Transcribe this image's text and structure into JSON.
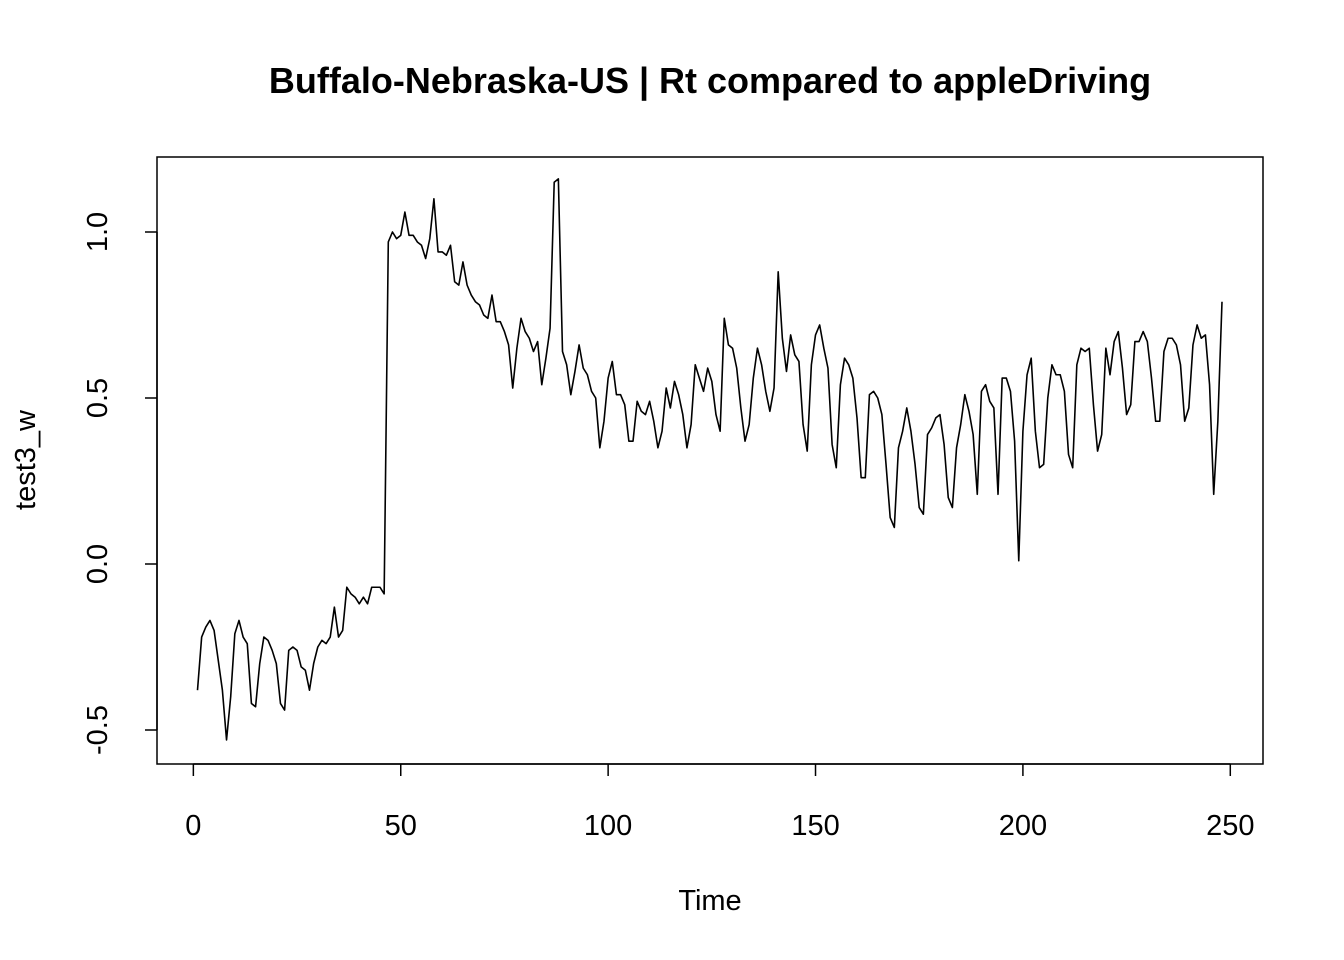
{
  "chart_data": {
    "type": "line",
    "title": "Buffalo-Nebraska-US | Rt compared to appleDriving",
    "xlabel": "Time",
    "ylabel": "test3_w",
    "xlim": [
      1,
      248
    ],
    "ylim": [
      -0.59,
      1.24
    ],
    "x_ticks": [
      0,
      50,
      100,
      150,
      200,
      250
    ],
    "x_tick_labels": [
      "0",
      "50",
      "100",
      "150",
      "200",
      "250"
    ],
    "y_ticks": [
      -0.5,
      0.0,
      0.5,
      1.0
    ],
    "y_tick_labels": [
      "-0.5",
      "0.0",
      "0.5",
      "1.0"
    ],
    "grid": false,
    "legend": "none",
    "series": [
      {
        "x_start": 1,
        "x_step": 1,
        "values": [
          -0.38,
          -0.22,
          -0.19,
          -0.17,
          -0.2,
          -0.29,
          -0.38,
          -0.53,
          -0.4,
          -0.21,
          -0.17,
          -0.22,
          -0.24,
          -0.42,
          -0.43,
          -0.3,
          -0.22,
          -0.23,
          -0.26,
          -0.3,
          -0.42,
          -0.44,
          -0.26,
          -0.25,
          -0.26,
          -0.31,
          -0.32,
          -0.38,
          -0.3,
          -0.25,
          -0.23,
          -0.24,
          -0.22,
          -0.13,
          -0.22,
          -0.2,
          -0.07,
          -0.09,
          -0.1,
          -0.12,
          -0.1,
          -0.12,
          -0.07,
          -0.07,
          -0.07,
          -0.09,
          0.97,
          1.0,
          0.98,
          0.99,
          1.06,
          0.99,
          0.99,
          0.97,
          0.96,
          0.92,
          0.98,
          1.1,
          0.94,
          0.94,
          0.93,
          0.96,
          0.85,
          0.84,
          0.91,
          0.84,
          0.81,
          0.79,
          0.78,
          0.75,
          0.74,
          0.81,
          0.73,
          0.73,
          0.7,
          0.66,
          0.53,
          0.65,
          0.74,
          0.7,
          0.68,
          0.64,
          0.67,
          0.54,
          0.62,
          0.71,
          1.15,
          1.16,
          0.64,
          0.6,
          0.51,
          0.58,
          0.66,
          0.59,
          0.57,
          0.52,
          0.5,
          0.35,
          0.43,
          0.56,
          0.61,
          0.51,
          0.51,
          0.48,
          0.37,
          0.37,
          0.49,
          0.46,
          0.45,
          0.49,
          0.43,
          0.35,
          0.4,
          0.53,
          0.47,
          0.55,
          0.51,
          0.45,
          0.35,
          0.42,
          0.6,
          0.56,
          0.52,
          0.59,
          0.55,
          0.45,
          0.4,
          0.74,
          0.66,
          0.65,
          0.59,
          0.47,
          0.37,
          0.42,
          0.56,
          0.65,
          0.6,
          0.52,
          0.46,
          0.53,
          0.88,
          0.68,
          0.58,
          0.69,
          0.63,
          0.61,
          0.42,
          0.34,
          0.6,
          0.69,
          0.72,
          0.65,
          0.59,
          0.36,
          0.29,
          0.54,
          0.62,
          0.6,
          0.56,
          0.44,
          0.26,
          0.26,
          0.51,
          0.52,
          0.5,
          0.45,
          0.3,
          0.14,
          0.11,
          0.35,
          0.4,
          0.47,
          0.4,
          0.3,
          0.17,
          0.15,
          0.39,
          0.41,
          0.44,
          0.45,
          0.36,
          0.2,
          0.17,
          0.35,
          0.42,
          0.51,
          0.46,
          0.39,
          0.21,
          0.52,
          0.54,
          0.49,
          0.47,
          0.21,
          0.56,
          0.56,
          0.52,
          0.37,
          0.01,
          0.4,
          0.57,
          0.62,
          0.4,
          0.29,
          0.3,
          0.5,
          0.6,
          0.57,
          0.57,
          0.52,
          0.33,
          0.29,
          0.6,
          0.65,
          0.64,
          0.65,
          0.48,
          0.34,
          0.39,
          0.65,
          0.57,
          0.67,
          0.7,
          0.59,
          0.45,
          0.48,
          0.67,
          0.67,
          0.7,
          0.67,
          0.56,
          0.43,
          0.43,
          0.64,
          0.68,
          0.68,
          0.66,
          0.6,
          0.43,
          0.47,
          0.66,
          0.72,
          0.68,
          0.69,
          0.54,
          0.21,
          0.43,
          0.79
        ]
      }
    ]
  }
}
